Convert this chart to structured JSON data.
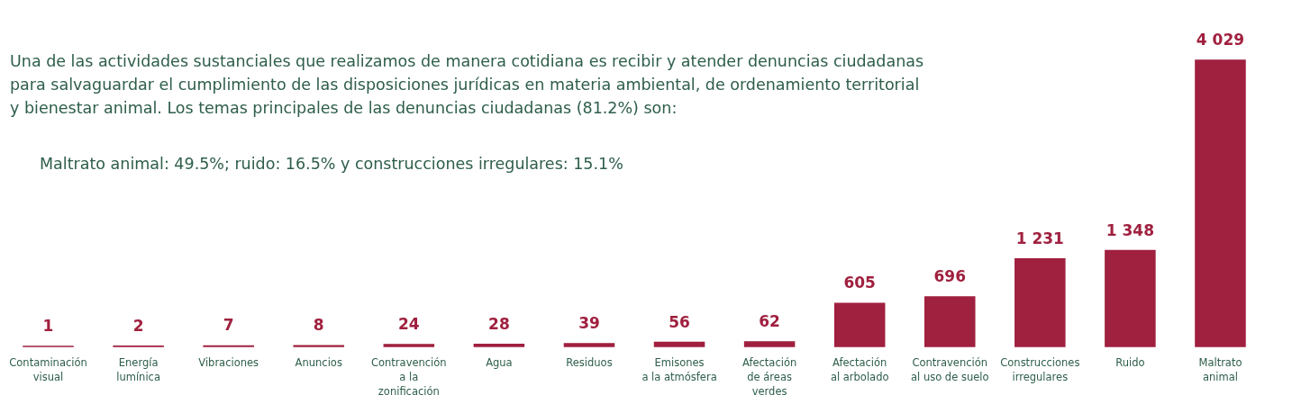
{
  "chart_data": {
    "type": "bar",
    "title": "Una de las actividades sustanciales que realizamos de manera cotidiana es recibir y atender denuncias ciudadanas\npara salvaguardar el cumplimiento de las disposiciones jurídicas en materia ambiental, de ordenamiento territorial\ny bienestar animal. Los temas principales de las denuncias ciudadanas (81.2%) son:",
    "subtitle": "Maltrato animal: 49.5%; ruido: 16.5% y construcciones irregulares: 15.1%",
    "categories": [
      "Contaminación\nvisual",
      "Energía\nlumínica",
      "Vibraciones",
      "Anuncios",
      "Contravención\na la\nzonificación",
      "Agua",
      "Residuos",
      "Emisones\na la atmósfera",
      "Afectación\nde áreas\nverdes",
      "Afectación\nal arbolado",
      "Contravención\nal uso de suelo",
      "Construcciones\nirregulares",
      "Ruido",
      "Maltrato\nanimal"
    ],
    "values": [
      1,
      2,
      7,
      8,
      24,
      28,
      39,
      56,
      62,
      605,
      696,
      1231,
      1348,
      4029
    ],
    "value_labels": [
      "1",
      "2",
      "7",
      "8",
      "24",
      "28",
      "39",
      "56",
      "62",
      "605",
      "696",
      "1 231",
      "1 348",
      "4 029"
    ],
    "color": "#a0203f"
  }
}
